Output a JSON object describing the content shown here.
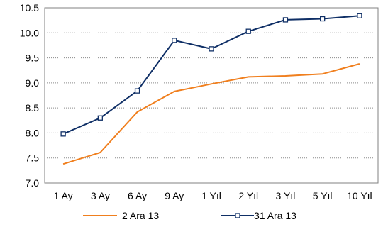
{
  "chart_data": {
    "type": "line",
    "categories": [
      "1 Ay",
      "3 Ay",
      "6 Ay",
      "9 Ay",
      "1 Yıl",
      "2 Yıl",
      "3 Yıl",
      "5 Yıl",
      "10 Yıl"
    ],
    "ylim": [
      7.0,
      10.5
    ],
    "yticks": [
      "7.0",
      "7.5",
      "8.0",
      "8.5",
      "9.0",
      "9.5",
      "10.0",
      "10.5"
    ],
    "grid": true,
    "legend_position": "bottom",
    "series": [
      {
        "name": "2 Ara 13",
        "color": "#F07F1E",
        "marker": "none",
        "values": [
          7.38,
          7.61,
          8.42,
          8.83,
          8.98,
          9.12,
          9.14,
          9.18,
          9.38
        ]
      },
      {
        "name": "31 Ara 13",
        "color": "#0F2F66",
        "marker": "square",
        "values": [
          7.98,
          8.3,
          8.84,
          9.85,
          9.68,
          10.03,
          10.26,
          10.28,
          10.34
        ]
      }
    ]
  }
}
